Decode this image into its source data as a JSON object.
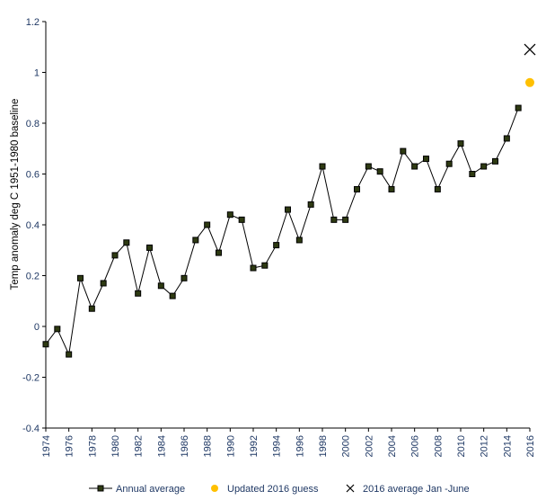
{
  "chart_data": {
    "type": "line",
    "title": "",
    "xlabel": "",
    "ylabel": "Temp anomaly deg C 1951-1980 baseline",
    "xlim": [
      1974,
      2016
    ],
    "ylim": [
      -0.4,
      1.2
    ],
    "y_ticks": [
      "-0.4",
      "-0.2",
      "0",
      "0.2",
      "0.4",
      "0.6",
      "0.8",
      "1",
      "1.2"
    ],
    "x_ticks": [
      "1974",
      "1976",
      "1978",
      "1980",
      "1982",
      "1984",
      "1986",
      "1988",
      "1990",
      "1992",
      "1994",
      "1996",
      "1998",
      "2000",
      "2002",
      "2004",
      "2006",
      "2008",
      "2010",
      "2012",
      "2014",
      "2016"
    ],
    "grid": false,
    "legend_position": "bottom",
    "series": [
      {
        "name": "Annual average",
        "marker": "square",
        "color": "#000000",
        "marker_fill": "#2e3a12",
        "x": [
          1974,
          1975,
          1976,
          1977,
          1978,
          1979,
          1980,
          1981,
          1982,
          1983,
          1984,
          1985,
          1986,
          1987,
          1988,
          1989,
          1990,
          1991,
          1992,
          1993,
          1994,
          1995,
          1996,
          1997,
          1998,
          1999,
          2000,
          2001,
          2002,
          2003,
          2004,
          2005,
          2006,
          2007,
          2008,
          2009,
          2010,
          2011,
          2012,
          2013,
          2014,
          2015
        ],
        "values": [
          -0.07,
          -0.01,
          -0.11,
          0.19,
          0.07,
          0.17,
          0.28,
          0.33,
          0.13,
          0.31,
          0.16,
          0.12,
          0.19,
          0.34,
          0.4,
          0.29,
          0.44,
          0.42,
          0.23,
          0.24,
          0.32,
          0.46,
          0.34,
          0.48,
          0.63,
          0.42,
          0.42,
          0.54,
          0.63,
          0.61,
          0.54,
          0.69,
          0.63,
          0.66,
          0.54,
          0.64,
          0.72,
          0.6,
          0.63,
          0.65,
          0.74,
          0.86
        ]
      },
      {
        "name": "Updated 2016 guess",
        "marker": "circle",
        "color": "#ffc000",
        "x": [
          2016
        ],
        "values": [
          0.96
        ]
      },
      {
        "name": "2016 average Jan -June",
        "marker": "x",
        "color": "#000000",
        "x": [
          2016
        ],
        "values": [
          1.09
        ]
      }
    ]
  }
}
